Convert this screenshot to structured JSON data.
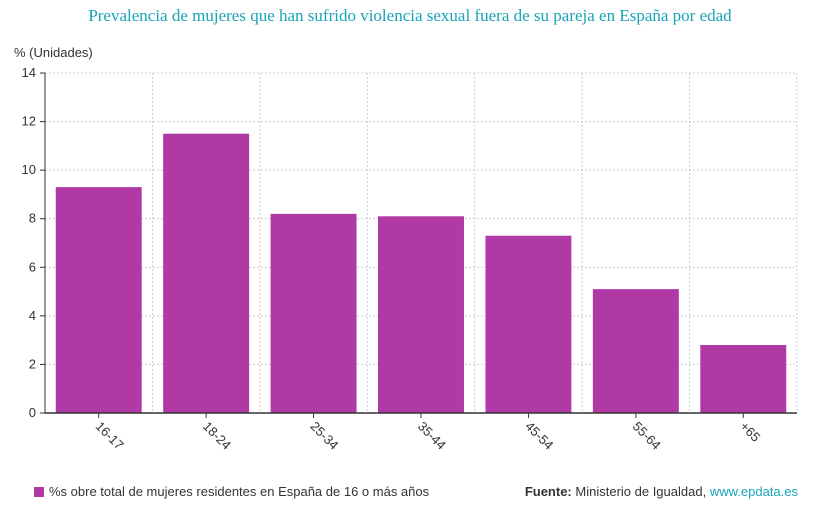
{
  "header": {
    "title": "Prevalencia de mujeres que han sufrido violencia sexual fuera de su pareja en España por edad"
  },
  "colors": {
    "bar": "#b039a5",
    "title": "#1aa3b8",
    "grid": "#cccccc"
  },
  "chart_data": {
    "type": "bar",
    "title": "Prevalencia de mujeres que han sufrido violencia sexual fuera de su pareja en España por edad",
    "ylabel": "% (Unidades)",
    "xlabel": "",
    "categories": [
      "16-17",
      "18-24",
      "25-34",
      "35-44",
      "45-54",
      "55-64",
      "+65"
    ],
    "series": [
      {
        "name": "%s obre total de mujeres residentes en España de 16 o más años",
        "values": [
          9.3,
          11.5,
          8.2,
          8.1,
          7.3,
          5.1,
          2.8
        ]
      }
    ],
    "ylim": [
      0,
      14
    ],
    "yticks": [
      0,
      2,
      4,
      6,
      8,
      10,
      12,
      14
    ],
    "grid": true,
    "legend_position": "bottom-left"
  },
  "footer": {
    "source_label": "Fuente:",
    "source_text": "Ministerio de Igualdad,",
    "source_link": "www.epdata.es"
  }
}
